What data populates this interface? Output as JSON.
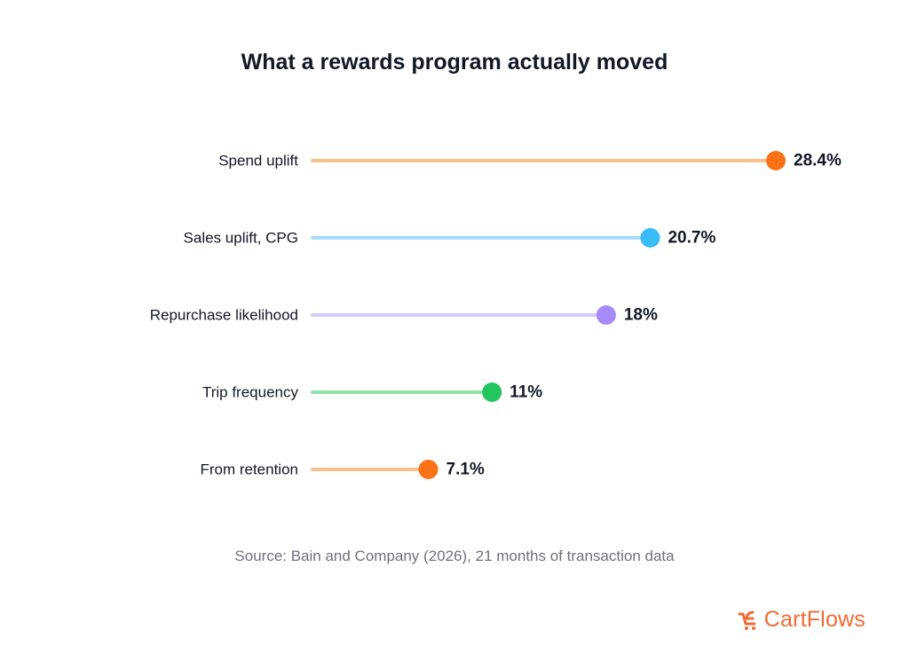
{
  "chart_data": {
    "type": "lollipop",
    "title": "What a rewards program actually moved",
    "categories": [
      "Spend uplift",
      "Sales uplift, CPG",
      "Repurchase likelihood",
      "Trip frequency",
      "From retention"
    ],
    "values": [
      28.4,
      20.7,
      18,
      11,
      7.1
    ],
    "value_labels": [
      "28.4%",
      "20.7%",
      "18%",
      "11%",
      "7.1%"
    ],
    "dot_colors": [
      "#f97316",
      "#38bdf8",
      "#a78bfa",
      "#22c55e",
      "#f97316"
    ],
    "line_colors": [
      "#fbbf8c",
      "#a5dcf8",
      "#d6c9fb",
      "#93e2ad",
      "#fbbf8c"
    ],
    "xlim": [
      0,
      28.4
    ],
    "orientation": "horizontal",
    "grid": false
  },
  "source": "Source: Bain and Company (2026), 21 months of transaction data",
  "brand": {
    "name": "CartFlows",
    "color": "#f06a35",
    "icon": "cartflows-logo-icon"
  }
}
